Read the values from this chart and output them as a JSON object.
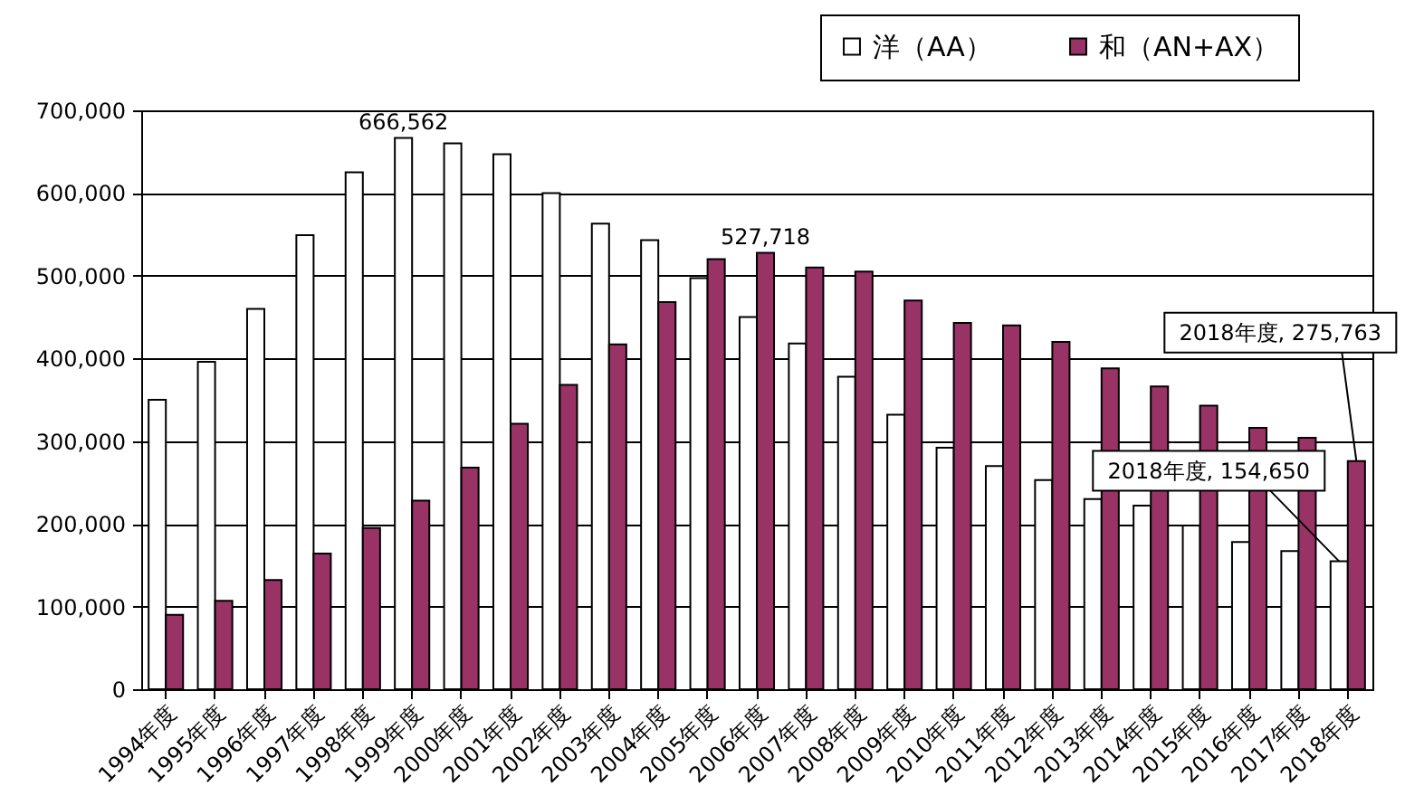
{
  "chart_data": {
    "type": "bar",
    "categories": [
      "1994年度",
      "1995年度",
      "1996年度",
      "1997年度",
      "1998年度",
      "1999年度",
      "2000年度",
      "2001年度",
      "2002年度",
      "2003年度",
      "2004年度",
      "2005年度",
      "2006年度",
      "2007年度",
      "2008年度",
      "2009年度",
      "2010年度",
      "2011年度",
      "2012年度",
      "2013年度",
      "2014年度",
      "2015年度",
      "2016年度",
      "2017年度",
      "2018年度"
    ],
    "series": [
      {
        "name": "洋（AA）",
        "color": "#ffffff",
        "values": [
          350000,
          396000,
          460000,
          549000,
          625000,
          666562,
          660000,
          647000,
          600000,
          563000,
          543000,
          497000,
          450000,
          418000,
          378000,
          332000,
          292000,
          270000,
          253000,
          230000,
          222000,
          198000,
          178000,
          167000,
          154650
        ],
        "value_labels": [
          null,
          null,
          null,
          null,
          null,
          "666,562",
          null,
          null,
          null,
          null,
          null,
          null,
          null,
          null,
          null,
          null,
          null,
          null,
          null,
          null,
          null,
          null,
          null,
          null,
          null
        ]
      },
      {
        "name": "和（AN+AX）",
        "color": "#993366",
        "values": [
          90000,
          107000,
          132000,
          164000,
          195000,
          228000,
          268000,
          321000,
          368000,
          417000,
          468000,
          520000,
          527718,
          510000,
          505000,
          470000,
          443000,
          440000,
          420000,
          388000,
          366000,
          343000,
          316000,
          304000,
          275763
        ],
        "value_labels": [
          null,
          null,
          null,
          null,
          null,
          null,
          null,
          null,
          null,
          null,
          null,
          null,
          "527,718",
          null,
          null,
          null,
          null,
          null,
          null,
          null,
          null,
          null,
          null,
          null,
          null
        ]
      }
    ],
    "annotations": [
      {
        "text": "2018年度, 275,763",
        "x": "2018年度",
        "y": 275763
      },
      {
        "text": "2018年度, 154,650",
        "x": "2018年度",
        "y": 154650
      }
    ],
    "ylim": [
      0,
      700000
    ],
    "yticks": [
      0,
      {
        "value": 100000,
        "label": "100,000"
      },
      {
        "value": 200000,
        "label": "200,000"
      },
      {
        "value": 300000,
        "label": "300,000"
      },
      {
        "value": 400000,
        "label": "400,000"
      },
      {
        "value": 500000,
        "label": "500,000"
      },
      {
        "value": 600000,
        "label": "600,000"
      },
      {
        "value": 700000,
        "label": "700,000"
      }
    ],
    "grid": "y",
    "legend": "top right"
  }
}
